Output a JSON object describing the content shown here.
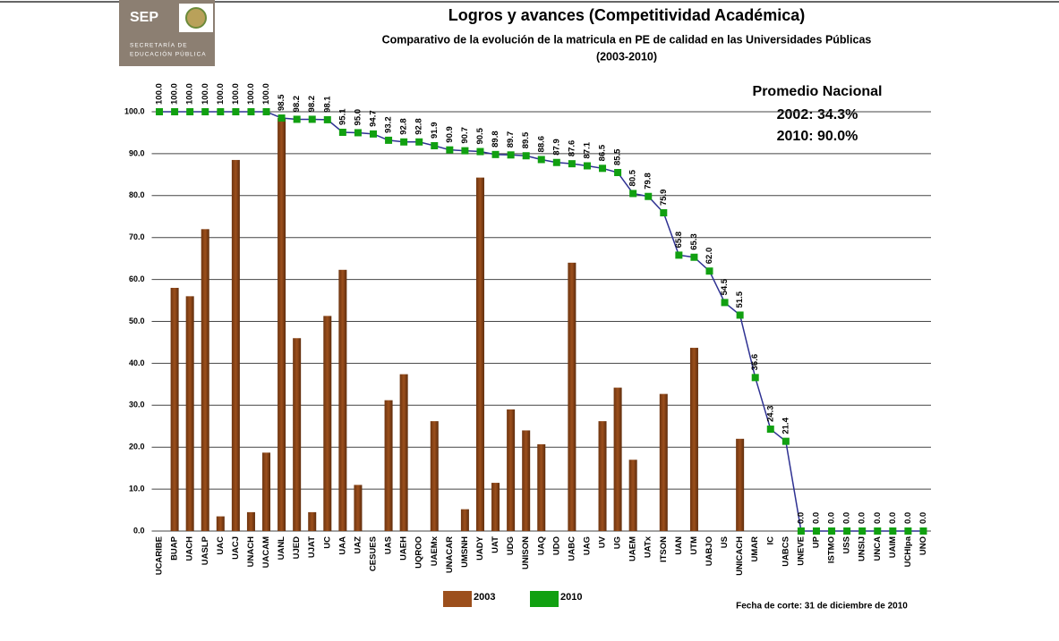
{
  "header": {
    "logo": "SEP",
    "logo_line1": "SECRETARÍA DE",
    "logo_line2": "EDUCACIÓN PÚBLICA"
  },
  "chart_data": {
    "type": "bar",
    "title": "Logros y avances (Competitividad Académica)",
    "subtitle": "Comparativo de  la evolución de la matricula en PE de calidad en las Universidades Públicas",
    "subtitle2": "(2003-2010)",
    "annotation": [
      "Promedio Nacional",
      "2002: 34.3%",
      "2010: 90.0%"
    ],
    "footnote": "Fecha de corte: 31 de diciembre de 2010",
    "categories": [
      "UCARIBE",
      "BUAP",
      "UACH",
      "UASLP",
      "UAC",
      "UACJ",
      "UNACH",
      "UACAM",
      "UANL",
      "UJED",
      "UJAT",
      "UC",
      "UAA",
      "UAZ",
      "CESUES",
      "UAS",
      "UAEH",
      "UQROO",
      "UAEMx",
      "UNACAR",
      "UMSNH",
      "UADY",
      "UAT",
      "UDG",
      "UNISON",
      "UAQ",
      "UDO",
      "UABC",
      "UAG",
      "UV",
      "UG",
      "UAEM",
      "UATx",
      "ITSON",
      "UAN",
      "UTM",
      "UABJO",
      "US",
      "UNICACH",
      "UMAR",
      "IC",
      "UABCS",
      "UNEVE",
      "UP",
      "ISTMO",
      "USS",
      "UNSIJ",
      "UNCA",
      "UAIM",
      "UCHIpa",
      "UNO"
    ],
    "series": [
      {
        "name": "2003",
        "kind": "bar",
        "color": "#9c4f1c",
        "values": [
          0,
          58,
          56,
          72,
          3.5,
          88.5,
          4.5,
          18.7,
          98.5,
          46,
          4.5,
          51.3,
          62.3,
          11,
          0,
          31.2,
          37.4,
          0,
          26.2,
          0,
          5.2,
          84.3,
          11.5,
          29,
          24,
          20.7,
          0,
          64,
          0,
          26.2,
          34.2,
          17,
          0,
          32.7,
          0,
          43.7,
          0,
          0,
          22,
          0,
          0,
          0,
          0,
          0,
          0,
          0,
          0,
          0,
          0,
          0,
          0
        ]
      },
      {
        "name": "2010",
        "kind": "line",
        "color": "#11a011",
        "line_color": "#2e3192",
        "values": [
          100,
          100,
          100,
          100,
          100,
          100,
          100,
          100,
          98.5,
          98.2,
          98.2,
          98.1,
          95.1,
          95,
          94.7,
          93.2,
          92.8,
          92.8,
          91.9,
          90.9,
          90.7,
          90.5,
          89.8,
          89.7,
          89.5,
          88.6,
          87.9,
          87.6,
          87.1,
          86.5,
          85.5,
          80.5,
          79.8,
          75.9,
          65.8,
          65.3,
          62,
          54.5,
          51.5,
          36.6,
          24.3,
          21.4,
          0,
          0,
          0,
          0,
          0,
          0,
          0,
          0,
          0
        ],
        "value_labels": [
          "100.0",
          "100.0",
          "100.0",
          "100.0",
          "100.0",
          "100.0",
          "100.0",
          "100.0",
          "98.5",
          "98.2",
          "98.2",
          "98.1",
          "95.1",
          "95.0",
          "94.7",
          "93.2",
          "92.8",
          "92.8",
          "91.9",
          "90.9",
          "90.7",
          "90.5",
          "89.8",
          "89.7",
          "89.5",
          "88.6",
          "87.9",
          "87.6",
          "87.1",
          "86.5",
          "85.5",
          "80.5",
          "79.8",
          "75.9",
          "65.8",
          "65.3",
          "62.0",
          "54.5",
          "51.5",
          "36.6",
          "24.3",
          "21.4",
          "0.0",
          "0.0",
          "0.0",
          "0.0",
          "0.0",
          "0.0",
          "0.0",
          "0.0",
          "0.0"
        ]
      }
    ],
    "ylim": [
      0,
      100
    ],
    "yticks": [
      {
        "value": 0,
        "label": "0.0"
      },
      {
        "value": 10,
        "label": "10.0"
      },
      {
        "value": 20,
        "label": "20.0"
      },
      {
        "value": 30,
        "label": "30.0"
      },
      {
        "value": 40,
        "label": "40.0"
      },
      {
        "value": 50,
        "label": "50.0"
      },
      {
        "value": 60,
        "label": "60.0"
      },
      {
        "value": 70,
        "label": "70.0"
      },
      {
        "value": 80,
        "label": "80.0"
      },
      {
        "value": 90,
        "label": "90.0"
      },
      {
        "value": 100,
        "label": "100.0"
      }
    ],
    "grid": true
  }
}
